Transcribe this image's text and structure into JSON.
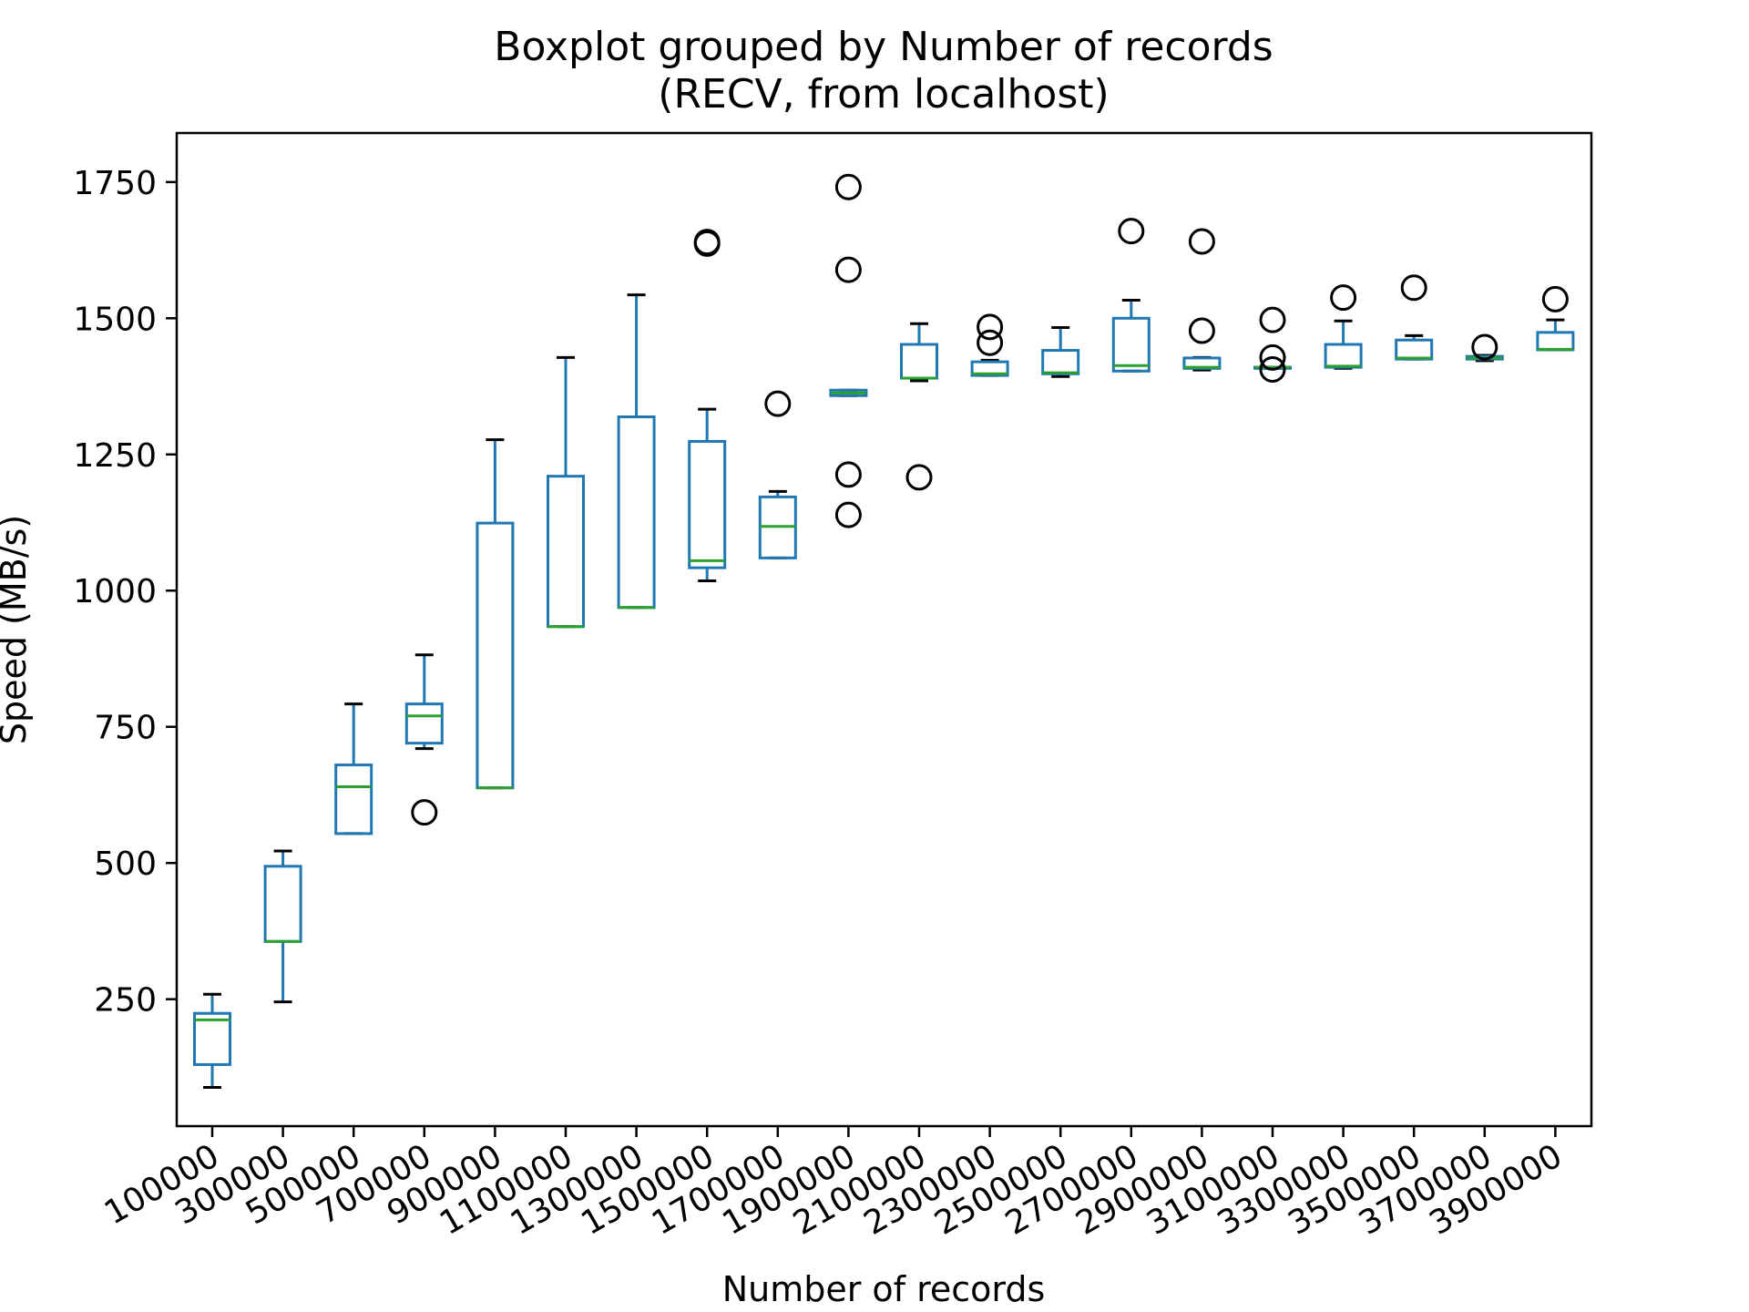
{
  "chart_data": {
    "type": "boxplot",
    "title": "Boxplot grouped by Number of records",
    "subtitle": "(RECV, from localhost)",
    "xlabel": "Number of records",
    "ylabel": "Speed (MB/s)",
    "ylim": [
      17,
      1840
    ],
    "yticks": [
      250,
      500,
      750,
      1000,
      1250,
      1500,
      1750
    ],
    "grid": false,
    "colors": {
      "box": "#1f77b4",
      "median": "#2ca02c",
      "whisker": "#1f77b4",
      "cap": "#000000",
      "flier": "#000000"
    },
    "categories": [
      "100000",
      "300000",
      "500000",
      "700000",
      "900000",
      "1100000",
      "1300000",
      "1500000",
      "1700000",
      "1900000",
      "2100000",
      "2300000",
      "2500000",
      "2700000",
      "2900000",
      "3100000",
      "3300000",
      "3500000",
      "3700000",
      "3900000"
    ],
    "boxes": [
      {
        "whislo": 88,
        "q1": 130,
        "med": 212,
        "q3": 224,
        "whishi": 259,
        "fliers": []
      },
      {
        "whislo": 245,
        "q1": 356,
        "med": 356,
        "q3": 494,
        "whishi": 522,
        "fliers": []
      },
      {
        "whislo": 554,
        "q1": 554,
        "med": 640,
        "q3": 680,
        "whishi": 792,
        "fliers": []
      },
      {
        "whislo": 710,
        "q1": 720,
        "med": 770,
        "q3": 792,
        "whishi": 882,
        "fliers": [
          593
        ]
      },
      {
        "whislo": 638,
        "q1": 638,
        "med": 638,
        "q3": 1124,
        "whishi": 1277,
        "fliers": []
      },
      {
        "whislo": 934,
        "q1": 934,
        "med": 934,
        "q3": 1210,
        "whishi": 1428,
        "fliers": []
      },
      {
        "whislo": 969,
        "q1": 969,
        "med": 969,
        "q3": 1319,
        "whishi": 1543,
        "fliers": []
      },
      {
        "whislo": 1018,
        "q1": 1042,
        "med": 1055,
        "q3": 1274,
        "whishi": 1333,
        "fliers": [
          1637,
          1640
        ]
      },
      {
        "whislo": 1060,
        "q1": 1060,
        "med": 1118,
        "q3": 1172,
        "whishi": 1182,
        "fliers": [
          1343
        ]
      },
      {
        "whislo": 1358,
        "q1": 1358,
        "med": 1363,
        "q3": 1368,
        "whishi": 1368,
        "fliers": [
          1741,
          1589,
          1213,
          1139
        ]
      },
      {
        "whislo": 1385,
        "q1": 1390,
        "med": 1390,
        "q3": 1452,
        "whishi": 1490,
        "fliers": [
          1208
        ]
      },
      {
        "whislo": 1395,
        "q1": 1395,
        "med": 1398,
        "q3": 1420,
        "whishi": 1423,
        "fliers": [
          1484,
          1455
        ]
      },
      {
        "whislo": 1393,
        "q1": 1398,
        "med": 1400,
        "q3": 1441,
        "whishi": 1483,
        "fliers": []
      },
      {
        "whislo": 1403,
        "q1": 1403,
        "med": 1413,
        "q3": 1500,
        "whishi": 1533,
        "fliers": [
          1660
        ]
      },
      {
        "whislo": 1405,
        "q1": 1408,
        "med": 1410,
        "q3": 1427,
        "whishi": 1428,
        "fliers": [
          1641,
          1477
        ]
      },
      {
        "whislo": 1408,
        "q1": 1408,
        "med": 1410,
        "q3": 1410,
        "whishi": 1410,
        "fliers": [
          1497,
          1428,
          1406
        ]
      },
      {
        "whislo": 1408,
        "q1": 1410,
        "med": 1412,
        "q3": 1452,
        "whishi": 1495,
        "fliers": [
          1538
        ]
      },
      {
        "whislo": 1425,
        "q1": 1425,
        "med": 1427,
        "q3": 1460,
        "whishi": 1468,
        "fliers": [
          1556
        ]
      },
      {
        "whislo": 1422,
        "q1": 1425,
        "med": 1427,
        "q3": 1430,
        "whishi": 1432,
        "fliers": [
          1447
        ]
      },
      {
        "whislo": 1442,
        "q1": 1442,
        "med": 1443,
        "q3": 1474,
        "whishi": 1497,
        "fliers": [
          1535
        ]
      }
    ]
  }
}
